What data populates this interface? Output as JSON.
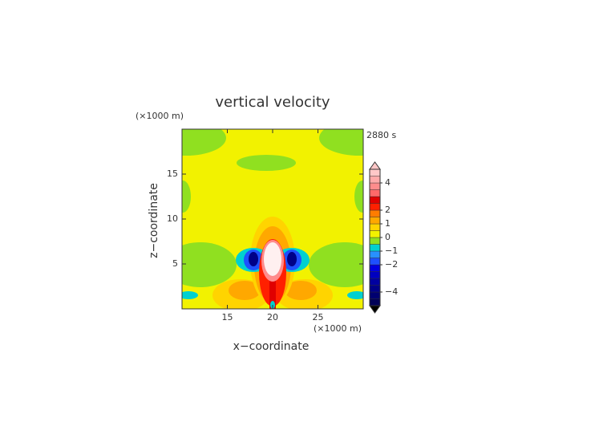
{
  "chart_data": {
    "type": "contour",
    "title": "vertical velocity",
    "time_label": "2880 s",
    "x_label": "x−coordinate",
    "y_label": "z−coordinate",
    "x_unit": "(×1000 m)",
    "y_unit": "(×1000 m)",
    "xlim": [
      10,
      30
    ],
    "xticks": [
      15,
      20,
      25
    ],
    "ylim": [
      0,
      20
    ],
    "yticks": [
      5,
      10,
      15
    ],
    "colorbar": {
      "lim": [
        -5,
        5
      ],
      "ticks": [
        {
          "value": -4,
          "label": "−4"
        },
        {
          "value": -2,
          "label": "−2"
        },
        {
          "value": -1,
          "label": "−1"
        },
        0,
        1,
        2,
        4
      ],
      "levels": [
        -5,
        -4.5,
        -4,
        -3.5,
        -3,
        -2.5,
        -2,
        -1.5,
        -1,
        -0.5,
        0,
        0.5,
        1,
        1.5,
        2,
        2.5,
        3,
        3.5,
        4,
        4.5,
        5
      ],
      "colors": [
        "#000058",
        "#000070",
        "#000088",
        "#0000a0",
        "#0000c0",
        "#0000e0",
        "#1e50ff",
        "#2890ff",
        "#00d0d0",
        "#90e020",
        "#f2f200",
        "#ffd400",
        "#ffa800",
        "#ff7c00",
        "#ff2000",
        "#e00000",
        "#ff6868",
        "#ff8c8c",
        "#ffaaaa",
        "#ffc8c8"
      ]
    }
  }
}
